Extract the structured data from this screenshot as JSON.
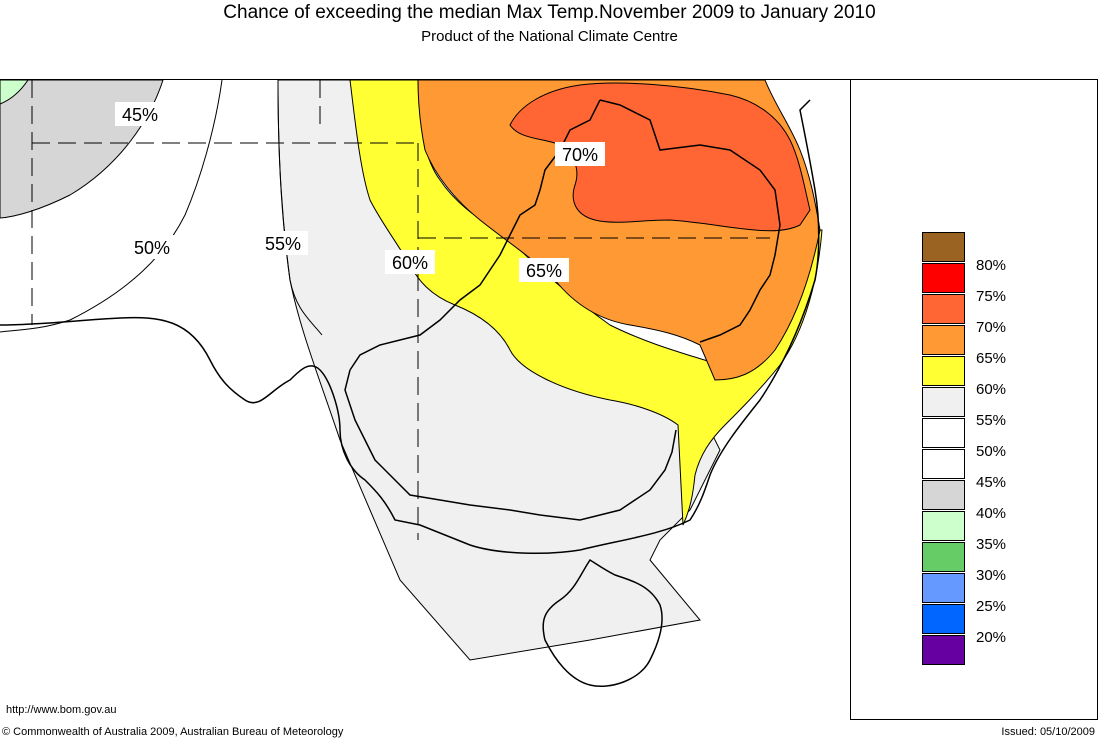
{
  "header": {
    "title": "Chance of exceeding the median Max Temp.November 2009 to January 2010",
    "subtitle": "Product of the National Climate Centre"
  },
  "map": {
    "contour_labels": [
      "45%",
      "50%",
      "55%",
      "60%",
      "65%",
      "70%"
    ]
  },
  "legend": {
    "items": [
      {
        "label": "80%",
        "color": "#9a6321"
      },
      {
        "label": "75%",
        "color": "#ff0000"
      },
      {
        "label": "70%",
        "color": "#ff6633"
      },
      {
        "label": "65%",
        "color": "#ff9933"
      },
      {
        "label": "60%",
        "color": "#ffff33"
      },
      {
        "label": "55%",
        "color": "#f0f0f0"
      },
      {
        "label": "50%",
        "color": "#ffffff"
      },
      {
        "label": "45%",
        "color": "#ffffff"
      },
      {
        "label": "40%",
        "color": "#d6d6d6"
      },
      {
        "label": "35%",
        "color": "#ccffcc"
      },
      {
        "label": "30%",
        "color": "#66cc66"
      },
      {
        "label": "25%",
        "color": "#6699ff"
      },
      {
        "label": "20%",
        "color": "#0066ff"
      },
      {
        "label": "",
        "color": "#6600a0"
      }
    ]
  },
  "footer": {
    "url": "http://www.bom.gov.au",
    "copyright": "© Commonwealth of Australia 2009, Australian Bureau of Meteorology",
    "issued": "Issued: 05/10/2009"
  }
}
